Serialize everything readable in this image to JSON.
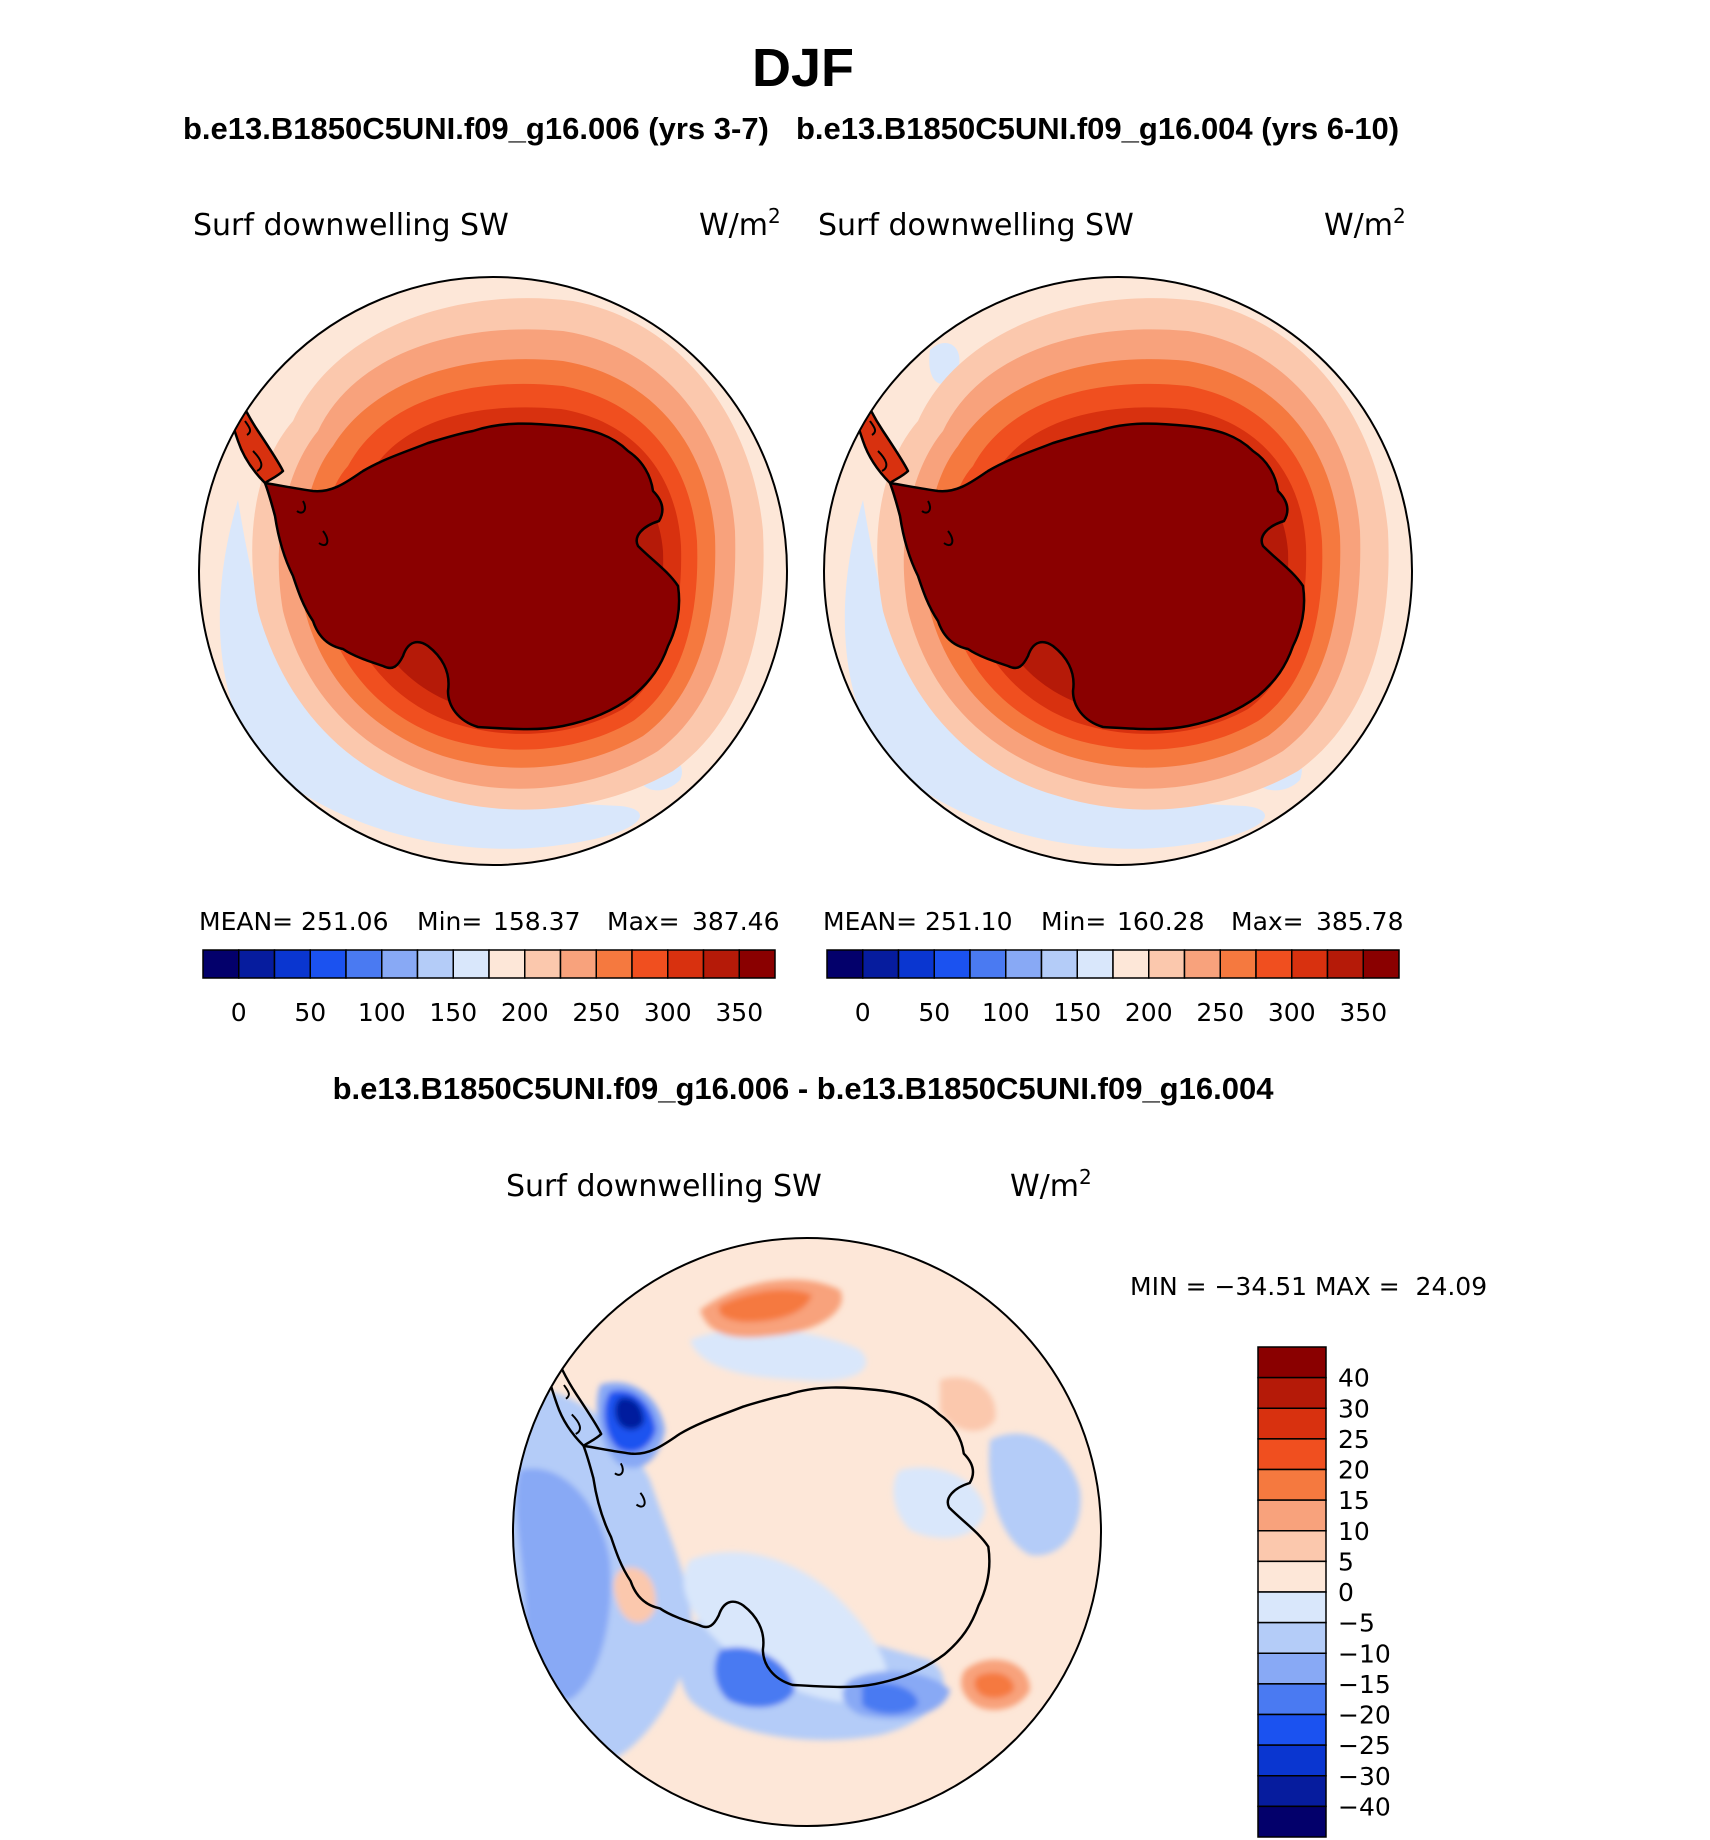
{
  "figure": {
    "title": "DJF",
    "top_caption_left": "b.e13.B1850C5UNI.f09_g16.006 (yrs 3-7)",
    "top_caption_right": "b.e13.B1850C5UNI.f09_g16.004 (yrs 6-10)",
    "diff_caption": "b.e13.B1850C5UNI.f09_g16.006 - b.e13.B1850C5UNI.f09_g16.004"
  },
  "panels": [
    {
      "variable": "Surf downwelling SW",
      "units_base": "W/m",
      "units_exp": "2",
      "stats": {
        "mean_label": "MEAN=",
        "mean": "251.06",
        "min_label": "Min=",
        "min": "158.37",
        "max_label": "Max=",
        "max": "387.46"
      }
    },
    {
      "variable": "Surf downwelling SW",
      "units_base": "W/m",
      "units_exp": "2",
      "stats": {
        "mean_label": "MEAN=",
        "mean": "251.10",
        "min_label": "Min=",
        "min": "160.28",
        "max_label": "Max=",
        "max": "385.78"
      }
    }
  ],
  "diff_panel": {
    "variable": "Surf downwelling SW",
    "units_base": "W/m",
    "units_exp": "2",
    "minmax": "MIN = −34.51 MAX =  24.09"
  },
  "colorbar_main": {
    "colors": [
      "#03006b",
      "#061c9e",
      "#0a36d0",
      "#1b52f0",
      "#4a7af2",
      "#88a9f5",
      "#b4ccf8",
      "#d9e7fb",
      "#fde7d8",
      "#fbc8ad",
      "#f8a27c",
      "#f5793f",
      "#f04f1f",
      "#d8310f",
      "#b51a08",
      "#8a0000"
    ],
    "tick_labels": [
      "0",
      "50",
      "100",
      "150",
      "200",
      "250",
      "300",
      "350"
    ]
  },
  "colorbar_diff": {
    "colors": [
      "#03006b",
      "#061c9e",
      "#0a36d0",
      "#1b52f0",
      "#4a7af2",
      "#88a9f5",
      "#b4ccf8",
      "#d9e7fb",
      "#fde7d8",
      "#fbc8ad",
      "#f8a27c",
      "#f5793f",
      "#f04f1f",
      "#d8310f",
      "#b51a08",
      "#8a0000"
    ],
    "tick_labels": [
      "40",
      "30",
      "25",
      "20",
      "15",
      "10",
      "5",
      "0",
      "−5",
      "−10",
      "−15",
      "−20",
      "−25",
      "−30",
      "−40"
    ]
  }
}
